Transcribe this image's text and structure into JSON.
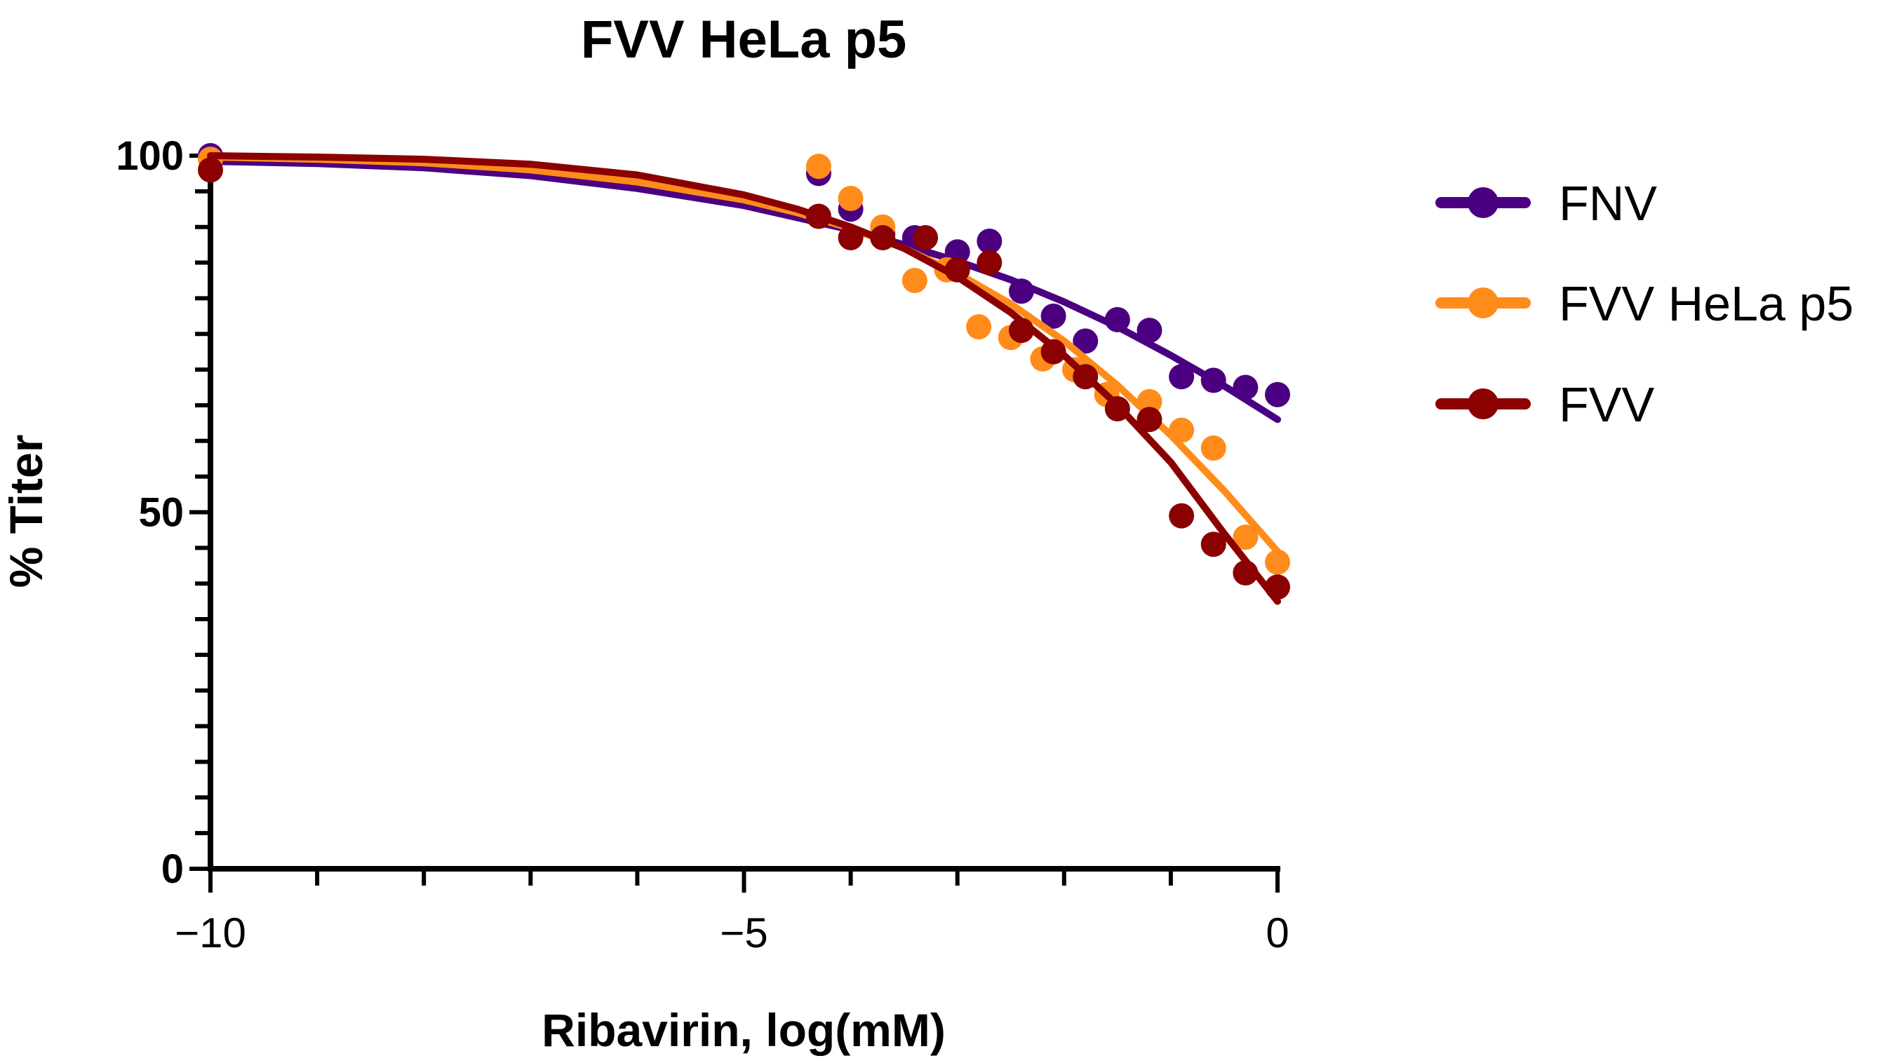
{
  "chart_data": {
    "type": "scatter",
    "title": "FVV HeLa p5",
    "xlabel": "Ribavirin, log(mM)",
    "ylabel": "% Titer",
    "xlim": [
      -10,
      0
    ],
    "ylim": [
      0,
      100
    ],
    "x_ticks": [
      -10,
      -5,
      0
    ],
    "x_tick_labels": [
      "−10",
      "−5",
      "0"
    ],
    "y_ticks": [
      0,
      50,
      100
    ],
    "y_tick_labels": [
      "0",
      "50",
      "100"
    ],
    "legend_position": "right",
    "series": [
      {
        "name": "FNV",
        "color": "#4b0082",
        "points": [
          [
            -10,
            100
          ],
          [
            -4.3,
            97.5
          ],
          [
            -4.0,
            92.5
          ],
          [
            -3.7,
            89
          ],
          [
            -3.4,
            88.5
          ],
          [
            -3.0,
            86.5
          ],
          [
            -2.7,
            88
          ],
          [
            -2.4,
            81
          ],
          [
            -2.1,
            77.5
          ],
          [
            -1.8,
            74
          ],
          [
            -1.5,
            77
          ],
          [
            -1.2,
            75.5
          ],
          [
            -0.9,
            69
          ],
          [
            -0.6,
            68.5
          ],
          [
            -0.3,
            67.5
          ],
          [
            0,
            66.5
          ]
        ],
        "curve": [
          [
            -10,
            99.2
          ],
          [
            -9,
            98.9
          ],
          [
            -8,
            98.3
          ],
          [
            -7,
            97.2
          ],
          [
            -6,
            95.4
          ],
          [
            -5,
            93.0
          ],
          [
            -4.5,
            91.3
          ],
          [
            -4.0,
            89.6
          ],
          [
            -3.5,
            87.5
          ],
          [
            -3.0,
            85.2
          ],
          [
            -2.5,
            82.6
          ],
          [
            -2.0,
            79.5
          ],
          [
            -1.5,
            76.0
          ],
          [
            -1.0,
            72.0
          ],
          [
            -0.5,
            67.7
          ],
          [
            0,
            63.0
          ]
        ]
      },
      {
        "name": "FVV HeLa p5",
        "color": "#ff8c1a",
        "points": [
          [
            -10,
            99.5
          ],
          [
            -4.3,
            98.5
          ],
          [
            -4.0,
            94
          ],
          [
            -3.7,
            90
          ],
          [
            -3.4,
            82.5
          ],
          [
            -3.1,
            84
          ],
          [
            -2.8,
            76
          ],
          [
            -2.5,
            74.5
          ],
          [
            -2.2,
            71.5
          ],
          [
            -1.9,
            70
          ],
          [
            -1.6,
            66.5
          ],
          [
            -1.2,
            65.5
          ],
          [
            -0.9,
            61.5
          ],
          [
            -0.6,
            59
          ],
          [
            -0.3,
            46.5
          ],
          [
            0,
            43
          ]
        ],
        "curve": [
          [
            -10,
            99.8
          ],
          [
            -9,
            99.5
          ],
          [
            -8,
            99.0
          ],
          [
            -7,
            98.0
          ],
          [
            -6,
            96.3
          ],
          [
            -5,
            93.8
          ],
          [
            -4.5,
            92.0
          ],
          [
            -4.0,
            89.8
          ],
          [
            -3.5,
            87.0
          ],
          [
            -3.0,
            83.5
          ],
          [
            -2.5,
            79.2
          ],
          [
            -2.0,
            74.0
          ],
          [
            -1.5,
            67.8
          ],
          [
            -1.0,
            60.8
          ],
          [
            -0.5,
            53.0
          ],
          [
            0,
            44.5
          ]
        ]
      },
      {
        "name": "FVV",
        "color": "#8b0000",
        "points": [
          [
            -10,
            98
          ],
          [
            -4.3,
            91.5
          ],
          [
            -4.0,
            88.5
          ],
          [
            -3.7,
            88.5
          ],
          [
            -3.3,
            88.5
          ],
          [
            -3.0,
            84
          ],
          [
            -2.7,
            85
          ],
          [
            -2.4,
            75.5
          ],
          [
            -2.1,
            72.5
          ],
          [
            -1.8,
            69
          ],
          [
            -1.5,
            64.5
          ],
          [
            -1.2,
            63
          ],
          [
            -0.9,
            49.5
          ],
          [
            -0.6,
            45.5
          ],
          [
            -0.3,
            41.5
          ],
          [
            0,
            39.5
          ]
        ],
        "curve": [
          [
            -10,
            100
          ],
          [
            -9,
            99.8
          ],
          [
            -8,
            99.5
          ],
          [
            -7,
            98.8
          ],
          [
            -6,
            97.3
          ],
          [
            -5,
            94.5
          ],
          [
            -4.5,
            92.5
          ],
          [
            -4.0,
            90.0
          ],
          [
            -3.5,
            87.0
          ],
          [
            -3.0,
            83.0
          ],
          [
            -2.5,
            78.0
          ],
          [
            -2.0,
            72.0
          ],
          [
            -1.5,
            65.0
          ],
          [
            -1.0,
            57.0
          ],
          [
            -0.5,
            47.0
          ],
          [
            0,
            37.5
          ]
        ]
      }
    ]
  }
}
